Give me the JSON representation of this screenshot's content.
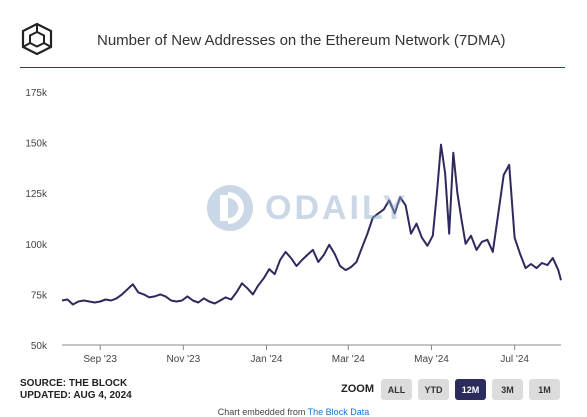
{
  "header": {
    "title": "Number of New Addresses on the Ethereum Network (7DMA)",
    "logo_icon": "the-block-cube-icon"
  },
  "source": {
    "line1": "SOURCE: THE BLOCK",
    "line2": "UPDATED: AUG 4, 2024"
  },
  "zoom": {
    "label": "ZOOM",
    "buttons": [
      "ALL",
      "YTD",
      "12M",
      "3M",
      "1M"
    ],
    "active": "12M"
  },
  "footer": {
    "prefix": "Chart embedded from ",
    "link": "The Block Data"
  },
  "watermark": {
    "text": "ODAILY",
    "icon": "odaily-logo-icon"
  },
  "colors": {
    "line": "#2e2a5e",
    "accent_rule": "#7a1f4d",
    "active_button": "#2b2b5e"
  },
  "chart_data": {
    "type": "line",
    "title": "Number of New Addresses on the Ethereum Network (7DMA)",
    "xlabel": "",
    "ylabel": "",
    "ylim": [
      50000,
      175000
    ],
    "yticks": [
      50000,
      75000,
      100000,
      125000,
      150000,
      175000
    ],
    "ytick_labels": [
      "50k",
      "75k",
      "100k",
      "125k",
      "150k",
      "175k"
    ],
    "xlim": [
      "2023-08-04",
      "2024-08-04"
    ],
    "xticks": [
      "2023-09-01",
      "2023-11-01",
      "2024-01-01",
      "2024-03-01",
      "2024-05-01",
      "2024-07-01"
    ],
    "xtick_labels": [
      "Sep '23",
      "Nov '23",
      "Jan '24",
      "Mar '24",
      "May '24",
      "Jul '24"
    ],
    "grid": false,
    "series": [
      {
        "x": [
          "2023-08-04",
          "2023-08-08",
          "2023-08-12",
          "2023-08-16",
          "2023-08-20",
          "2023-08-24",
          "2023-08-28",
          "2023-09-01",
          "2023-09-05",
          "2023-09-09",
          "2023-09-13",
          "2023-09-17",
          "2023-09-21",
          "2023-09-25",
          "2023-09-29",
          "2023-10-03",
          "2023-10-07",
          "2023-10-11",
          "2023-10-15",
          "2023-10-19",
          "2023-10-23",
          "2023-10-27",
          "2023-10-31",
          "2023-11-04",
          "2023-11-08",
          "2023-11-12",
          "2023-11-16",
          "2023-11-20",
          "2023-11-24",
          "2023-11-28",
          "2023-12-02",
          "2023-12-06",
          "2023-12-10",
          "2023-12-14",
          "2023-12-18",
          "2023-12-22",
          "2023-12-26",
          "2023-12-30",
          "2024-01-03",
          "2024-01-07",
          "2024-01-11",
          "2024-01-15",
          "2024-01-19",
          "2024-01-23",
          "2024-01-27",
          "2024-01-31",
          "2024-02-04",
          "2024-02-08",
          "2024-02-12",
          "2024-02-16",
          "2024-02-20",
          "2024-02-24",
          "2024-02-28",
          "2024-03-03",
          "2024-03-07",
          "2024-03-11",
          "2024-03-15",
          "2024-03-19",
          "2024-03-23",
          "2024-03-27",
          "2024-03-31",
          "2024-04-04",
          "2024-04-08",
          "2024-04-12",
          "2024-04-16",
          "2024-04-20",
          "2024-04-24",
          "2024-04-28",
          "2024-05-02",
          "2024-05-05",
          "2024-05-08",
          "2024-05-11",
          "2024-05-14",
          "2024-05-17",
          "2024-05-20",
          "2024-05-23",
          "2024-05-26",
          "2024-05-30",
          "2024-06-03",
          "2024-06-07",
          "2024-06-11",
          "2024-06-15",
          "2024-06-19",
          "2024-06-23",
          "2024-06-27",
          "2024-07-01",
          "2024-07-05",
          "2024-07-09",
          "2024-07-13",
          "2024-07-17",
          "2024-07-21",
          "2024-07-25",
          "2024-07-29",
          "2024-08-02",
          "2024-08-04"
        ],
        "values": [
          72000,
          72500,
          70000,
          71500,
          72000,
          71500,
          71000,
          71500,
          72500,
          72000,
          73000,
          75000,
          77500,
          80000,
          76000,
          75000,
          73500,
          74000,
          75000,
          74000,
          72000,
          71500,
          72000,
          74000,
          72000,
          71000,
          73000,
          71500,
          70500,
          72000,
          73500,
          72500,
          76000,
          80500,
          78000,
          75000,
          79500,
          83000,
          87500,
          85000,
          92000,
          96000,
          93000,
          89000,
          92000,
          94500,
          97000,
          91000,
          94500,
          99500,
          95000,
          89000,
          87000,
          88500,
          91000,
          98000,
          105000,
          113000,
          115000,
          117000,
          121500,
          115000,
          123000,
          119000,
          105000,
          110000,
          103000,
          99000,
          104000,
          125000,
          149000,
          135000,
          105000,
          145000,
          125000,
          112000,
          100000,
          104000,
          97000,
          101000,
          102000,
          96000,
          115000,
          134000,
          139000,
          103000,
          95000,
          88000,
          90000,
          88000,
          90500,
          89500,
          93000,
          87000,
          82000
        ]
      }
    ]
  }
}
